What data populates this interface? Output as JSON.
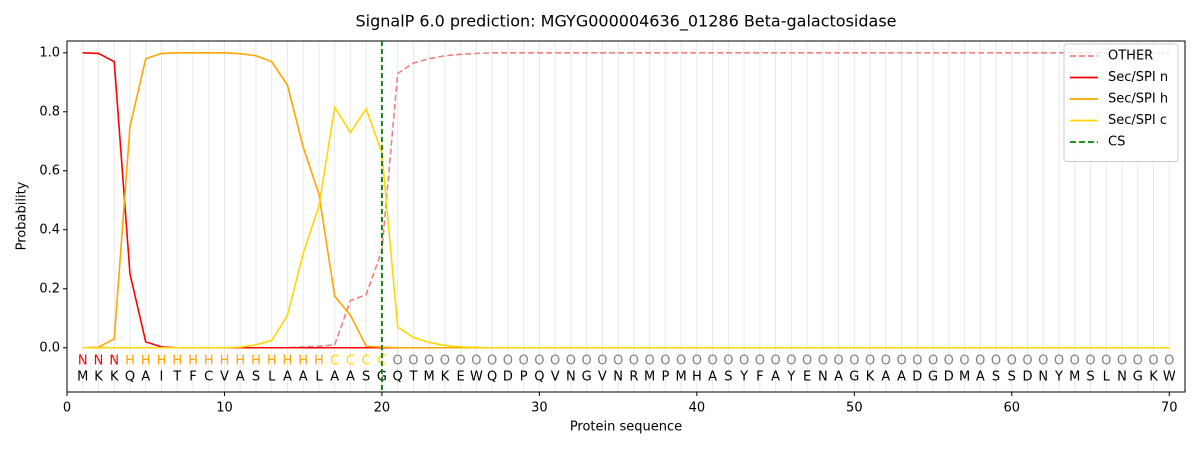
{
  "chart_data": {
    "type": "line",
    "title": "SignalP 6.0 prediction: MGYG000004636_01286 Beta-galactosidase",
    "x_label": "Protein sequence",
    "y_label": "Probability",
    "x": [
      1,
      2,
      3,
      4,
      5,
      6,
      7,
      8,
      9,
      10,
      11,
      12,
      13,
      14,
      15,
      16,
      17,
      18,
      19,
      20,
      21,
      22,
      23,
      24,
      25,
      26,
      27,
      28,
      29,
      30,
      31,
      32,
      33,
      34,
      35,
      36,
      37,
      38,
      39,
      40,
      41,
      42,
      43,
      44,
      45,
      46,
      47,
      48,
      49,
      50,
      51,
      52,
      53,
      54,
      55,
      56,
      57,
      58,
      59,
      60,
      61,
      62,
      63,
      64,
      65,
      66,
      67,
      68,
      69,
      70
    ],
    "sequence": [
      "M",
      "K",
      "K",
      "Q",
      "A",
      "I",
      "T",
      "F",
      "C",
      "V",
      "A",
      "S",
      "L",
      "A",
      "A",
      "L",
      "A",
      "A",
      "S",
      "G",
      "Q",
      "T",
      "M",
      "K",
      "E",
      "W",
      "Q",
      "D",
      "P",
      "Q",
      "V",
      "N",
      "G",
      "V",
      "N",
      "R",
      "M",
      "P",
      "M",
      "H",
      "A",
      "S",
      "Y",
      "F",
      "A",
      "Y",
      "E",
      "N",
      "A",
      "G",
      "K",
      "A",
      "A",
      "D",
      "G",
      "D",
      "M",
      "A",
      "S",
      "S",
      "D",
      "N",
      "Y",
      "M",
      "S",
      "L",
      "N",
      "G",
      "K",
      "W"
    ],
    "labels": [
      "N",
      "N",
      "N",
      "H",
      "H",
      "H",
      "H",
      "H",
      "H",
      "H",
      "H",
      "H",
      "H",
      "H",
      "H",
      "H",
      "C",
      "C",
      "C",
      "C",
      "O",
      "O",
      "O",
      "O",
      "O",
      "O",
      "O",
      "O",
      "O",
      "O",
      "O",
      "O",
      "O",
      "O",
      "O",
      "O",
      "O",
      "O",
      "O",
      "O",
      "O",
      "O",
      "O",
      "O",
      "O",
      "O",
      "O",
      "O",
      "O",
      "O",
      "O",
      "O",
      "O",
      "O",
      "O",
      "O",
      "O",
      "O",
      "O",
      "O",
      "O",
      "O",
      "O",
      "O",
      "O",
      "O",
      "O",
      "O",
      "O",
      "O"
    ],
    "label_colors": {
      "N": "#ff0000",
      "H": "#ffa500",
      "C": "#ffd700",
      "O": "#808080"
    },
    "series": [
      {
        "name": "OTHER",
        "color": "#f08080",
        "dashed": true,
        "values": [
          0,
          0,
          0,
          0,
          0,
          0,
          0,
          0,
          0,
          0,
          0,
          0,
          0,
          0,
          0.003,
          0.005,
          0.01,
          0.16,
          0.18,
          0.33,
          0.93,
          0.965,
          0.98,
          0.99,
          0.995,
          0.998,
          1,
          1,
          1,
          1,
          1,
          1,
          1,
          1,
          1,
          1,
          1,
          1,
          1,
          1,
          1,
          1,
          1,
          1,
          1,
          1,
          1,
          1,
          1,
          1,
          1,
          1,
          1,
          1,
          1,
          1,
          1,
          1,
          1,
          1,
          1,
          1,
          1,
          1,
          1,
          1,
          1,
          1,
          1,
          1
        ]
      },
      {
        "name": "Sec/SPI n",
        "color": "#ff0000",
        "dashed": false,
        "values": [
          1,
          0.998,
          0.97,
          0.25,
          0.02,
          0.003,
          0,
          0,
          0,
          0,
          0,
          0,
          0,
          0,
          0,
          0,
          0,
          0,
          0,
          0,
          0,
          0,
          0,
          0,
          0,
          0,
          0,
          0,
          0,
          0,
          0,
          0,
          0,
          0,
          0,
          0,
          0,
          0,
          0,
          0,
          0,
          0,
          0,
          0,
          0,
          0,
          0,
          0,
          0,
          0,
          0,
          0,
          0,
          0,
          0,
          0,
          0,
          0,
          0,
          0,
          0,
          0,
          0,
          0,
          0,
          0,
          0,
          0,
          0,
          0
        ]
      },
      {
        "name": "Sec/SPI h",
        "color": "#ffa500",
        "dashed": false,
        "values": [
          0,
          0.002,
          0.03,
          0.75,
          0.98,
          0.998,
          1,
          1,
          1,
          1,
          0.997,
          0.99,
          0.97,
          0.89,
          0.68,
          0.52,
          0.175,
          0.11,
          0.005,
          0.002,
          0,
          0,
          0,
          0,
          0,
          0,
          0,
          0,
          0,
          0,
          0,
          0,
          0,
          0,
          0,
          0,
          0,
          0,
          0,
          0,
          0,
          0,
          0,
          0,
          0,
          0,
          0,
          0,
          0,
          0,
          0,
          0,
          0,
          0,
          0,
          0,
          0,
          0,
          0,
          0,
          0,
          0,
          0,
          0,
          0,
          0,
          0,
          0,
          0,
          0
        ]
      },
      {
        "name": "Sec/SPI c",
        "color": "#ffd700",
        "dashed": false,
        "values": [
          0,
          0,
          0,
          0,
          0,
          0,
          0,
          0,
          0,
          0,
          0.002,
          0.01,
          0.025,
          0.11,
          0.32,
          0.48,
          0.815,
          0.73,
          0.81,
          0.66,
          0.07,
          0.035,
          0.018,
          0.008,
          0.003,
          0.001,
          0,
          0,
          0,
          0,
          0,
          0,
          0,
          0,
          0,
          0,
          0,
          0,
          0,
          0,
          0,
          0,
          0,
          0,
          0,
          0,
          0,
          0,
          0,
          0,
          0,
          0,
          0,
          0,
          0,
          0,
          0,
          0,
          0,
          0,
          0,
          0,
          0,
          0,
          0,
          0,
          0,
          0,
          0,
          0
        ]
      }
    ],
    "cs": {
      "name": "CS",
      "x": 20,
      "color": "#008000"
    },
    "xlim": [
      0,
      71
    ],
    "xticks": [
      0,
      10,
      20,
      30,
      40,
      50,
      60,
      70
    ],
    "ylim": [
      -0.15,
      1.04
    ],
    "yticks": [
      {
        "value": 0,
        "label": "0.0"
      },
      {
        "value": 0.2,
        "label": "0.2"
      },
      {
        "value": 0.4,
        "label": "0.4"
      },
      {
        "value": 0.6,
        "label": "0.6"
      },
      {
        "value": 0.8,
        "label": "0.8"
      },
      {
        "value": 1,
        "label": "1.0"
      }
    ],
    "legend": "upper right"
  }
}
